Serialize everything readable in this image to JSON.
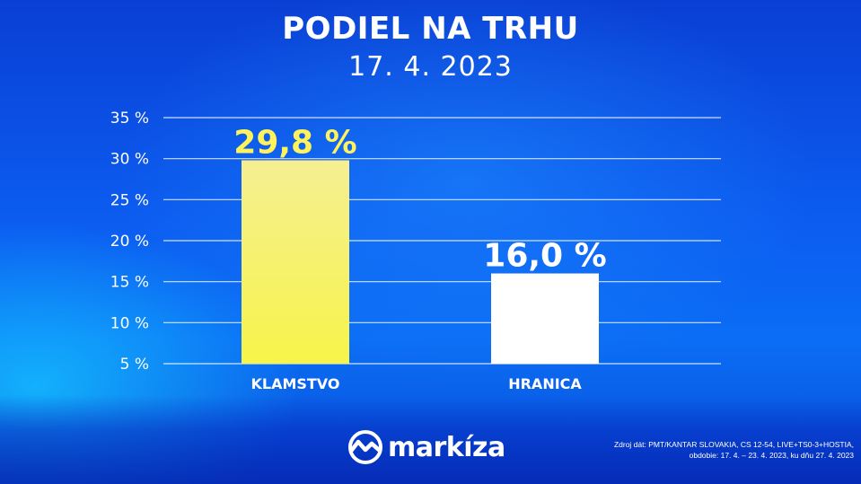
{
  "header": {
    "title": "PODIEL NA TRHU",
    "date": "17. 4. 2023"
  },
  "chart_data": {
    "type": "bar",
    "categories": [
      "KLAMSTVO",
      "HRANICA"
    ],
    "values": [
      29.8,
      16.0
    ],
    "value_labels": [
      "29,8 %",
      "16,0 %"
    ],
    "bar_colors": [
      "#f6f07a",
      "#ffffff"
    ],
    "value_label_colors": [
      "#fff25a",
      "#ffffff"
    ],
    "yticks": [
      5,
      10,
      15,
      20,
      25,
      30,
      35
    ],
    "ytick_labels": [
      "5 %",
      "10 %",
      "15 %",
      "20 %",
      "25 %",
      "30 %",
      "35 %"
    ],
    "ylim": [
      5,
      35
    ],
    "grid": true,
    "title": "PODIEL NA TRHU",
    "xlabel": "",
    "ylabel": ""
  },
  "footer": {
    "logo_text": "markíza",
    "logo_icon": "markiza-wave-icon",
    "source_line1": "Zdroj dát: PMT/KANTAR SLOVAKIA, CS 12-54, LIVE+TS0-3+HOSTIA,",
    "source_line2": "obdobie: 17. 4. – 23. 4. 2023, ku dňu 27. 4. 2023"
  }
}
